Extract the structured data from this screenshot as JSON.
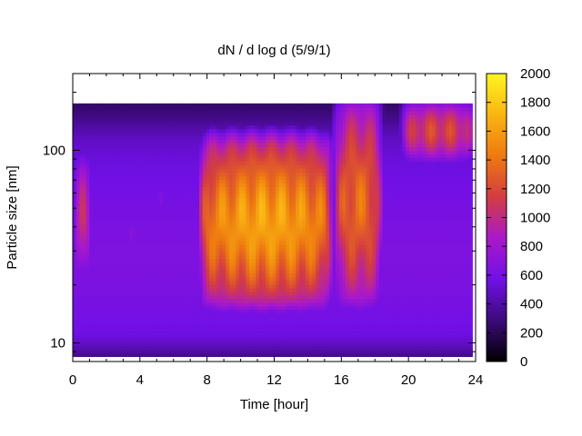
{
  "chart_data": {
    "type": "heatmap",
    "title": "dN / d log d (5/9/1)",
    "xlabel": "Time [hour]",
    "ylabel": "Particle size [nm]",
    "x_range": [
      0,
      24
    ],
    "x_ticks": [
      0,
      4,
      8,
      12,
      16,
      20,
      24
    ],
    "y_scale": "log",
    "y_range": [
      8,
      250
    ],
    "y_ticks": [
      10,
      100
    ],
    "colorbar": {
      "range": [
        0,
        2000
      ],
      "ticks": [
        0,
        200,
        400,
        600,
        800,
        1000,
        1200,
        1400,
        1600,
        1800,
        2000
      ],
      "colormap": [
        "#000000",
        "#3c0a78",
        "#7010e6",
        "#aa19c9",
        "#d33c42",
        "#ee7a10",
        "#f9b512",
        "#fff620"
      ]
    },
    "data_extent": {
      "x": [
        0,
        23.8
      ],
      "y_nm": [
        8.5,
        175
      ]
    },
    "features": [
      {
        "time_range": [
          0,
          1.2
        ],
        "size_nm_range": [
          18,
          110
        ],
        "peak_value": 1200
      },
      {
        "time_range": [
          3,
          4
        ],
        "size_nm_range": [
          28,
          50
        ],
        "peak_value": 950
      },
      {
        "time_range": [
          5,
          5.6
        ],
        "size_nm_range": [
          40,
          80
        ],
        "peak_value": 1000
      },
      {
        "time_range": [
          7.5,
          15.5
        ],
        "size_nm_range": [
          14,
          130
        ],
        "peak_value": 1800
      },
      {
        "time_range": [
          15.5,
          18.5
        ],
        "size_nm_range": [
          14,
          200
        ],
        "peak_value": 1500
      },
      {
        "time_range": [
          19.5,
          24
        ],
        "size_nm_range": [
          80,
          200
        ],
        "peak_value": 1300
      }
    ],
    "grid": false
  }
}
